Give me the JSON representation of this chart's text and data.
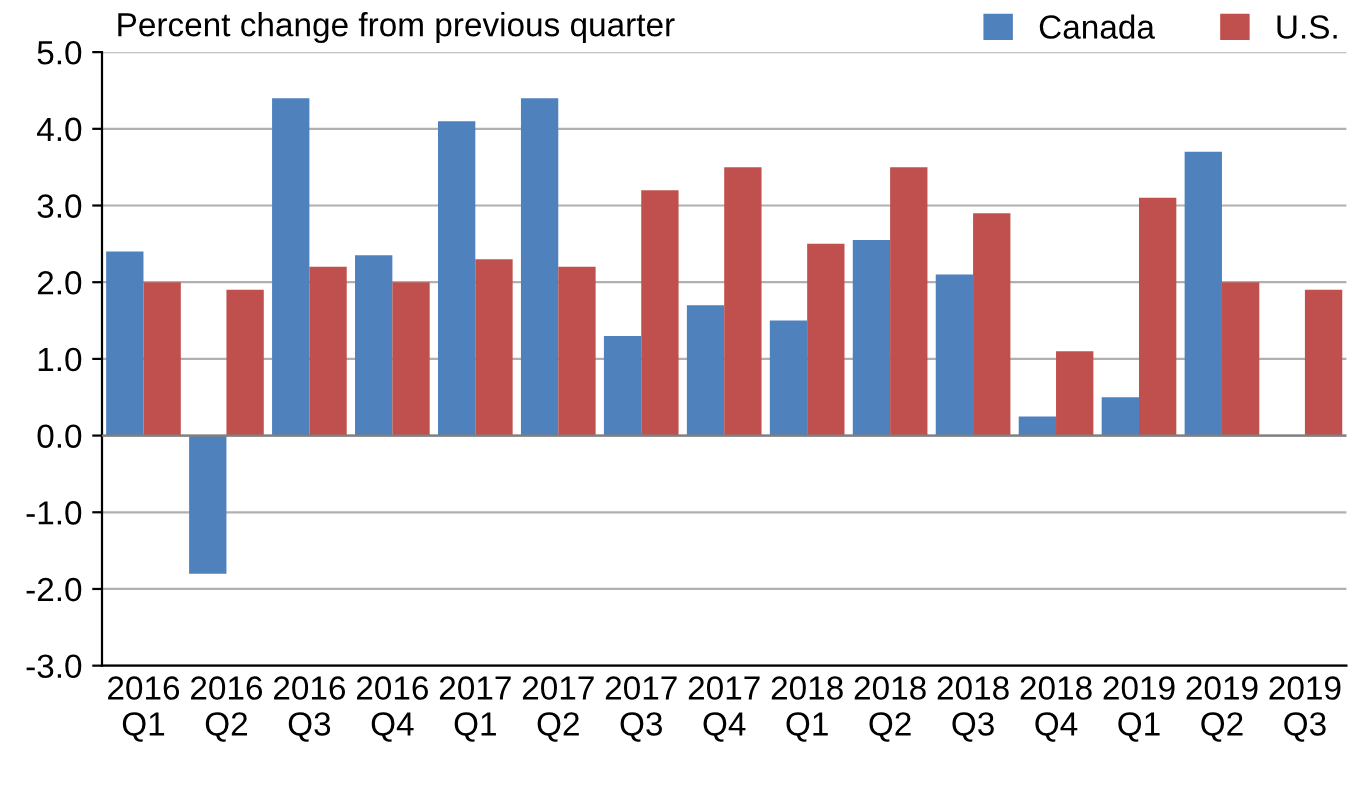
{
  "chart_data": {
    "type": "bar",
    "title": "Percent change from previous quarter",
    "categories": [
      "2016\nQ1",
      "2016\nQ2",
      "2016\nQ3",
      "2016\nQ4",
      "2017\nQ1",
      "2017\nQ2",
      "2017\nQ3",
      "2017\nQ4",
      "2018\nQ1",
      "2018\nQ2",
      "2018\nQ3",
      "2018\nQ4",
      "2019\nQ1",
      "2019\nQ2",
      "2019\nQ3"
    ],
    "series": [
      {
        "name": "Canada",
        "color": "#4f81bd",
        "values": [
          2.4,
          -1.8,
          4.4,
          2.35,
          4.1,
          4.4,
          1.3,
          1.7,
          1.5,
          2.55,
          2.1,
          0.25,
          0.5,
          3.7,
          0.0
        ]
      },
      {
        "name": "U.S.",
        "color": "#c0504d",
        "values": [
          2.0,
          1.9,
          2.2,
          2.0,
          2.3,
          2.2,
          3.2,
          3.5,
          2.5,
          3.5,
          2.9,
          1.1,
          3.1,
          2.0,
          1.9
        ]
      }
    ],
    "ylim": [
      -3,
      5
    ],
    "yticks": [
      {
        "value": -3,
        "label": "-3.0"
      },
      {
        "value": -2,
        "label": "-2.0"
      },
      {
        "value": -1,
        "label": "-1.0"
      },
      {
        "value": 0,
        "label": "0.0"
      },
      {
        "value": 1,
        "label": "1.0"
      },
      {
        "value": 2,
        "label": "2.0"
      },
      {
        "value": 3,
        "label": "3.0"
      },
      {
        "value": 4,
        "label": "4.0"
      },
      {
        "value": 5,
        "label": "5.0"
      }
    ],
    "grid": "y",
    "legend": "top right"
  }
}
